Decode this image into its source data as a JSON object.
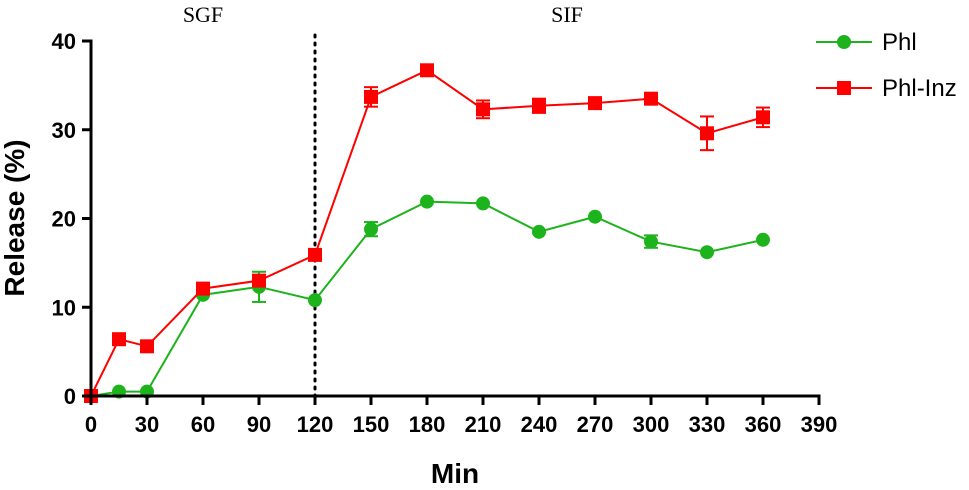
{
  "chart_data": {
    "type": "line",
    "xlabel": "Min",
    "ylabel": "Release (%)",
    "xlim": [
      0,
      390
    ],
    "ylim": [
      0,
      40
    ],
    "xticks": [
      0,
      30,
      60,
      90,
      120,
      150,
      180,
      210,
      240,
      270,
      300,
      330,
      360,
      390
    ],
    "yticks": [
      0,
      10,
      20,
      30,
      40
    ],
    "grid": false,
    "legend_position": "top-right",
    "phases": [
      {
        "label": "SGF",
        "x_center": 60
      },
      {
        "label": "SIF",
        "x_center": 255
      }
    ],
    "divider_x": 120,
    "series": [
      {
        "name": "Phl",
        "color": "#1db31d",
        "marker": "circle",
        "x": [
          0,
          15,
          30,
          60,
          90,
          120,
          150,
          180,
          210,
          240,
          270,
          300,
          330,
          360
        ],
        "y": [
          0,
          0.5,
          0.5,
          11.4,
          12.3,
          10.8,
          18.8,
          21.9,
          21.7,
          18.5,
          20.2,
          17.4,
          16.2,
          17.6
        ],
        "err": [
          0,
          0,
          0,
          0,
          1.7,
          0,
          0.8,
          0,
          0,
          0,
          0,
          0.7,
          0,
          0
        ]
      },
      {
        "name": "Phl-Inz",
        "color": "#ff0000",
        "marker": "square",
        "x": [
          0,
          15,
          30,
          60,
          90,
          120,
          150,
          180,
          210,
          240,
          270,
          300,
          330,
          360
        ],
        "y": [
          0,
          6.4,
          5.6,
          12.1,
          13.0,
          15.9,
          33.7,
          36.7,
          32.3,
          32.7,
          33.0,
          33.5,
          29.6,
          31.4
        ],
        "err": [
          0,
          0,
          0,
          0,
          0,
          0,
          1.1,
          0,
          1.0,
          0.8,
          0,
          0,
          1.9,
          1.1
        ]
      }
    ]
  }
}
